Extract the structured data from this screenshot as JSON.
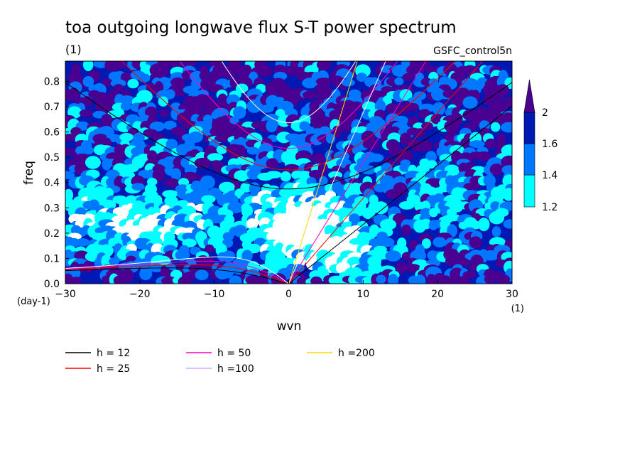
{
  "chart_data": {
    "type": "heatmap",
    "title": "toa outgoing longwave flux S-T power spectrum",
    "units_label": "(1)",
    "subtitle_right": "GSFC_control5n",
    "xlabel": "wvn",
    "ylabel": "freq",
    "x_unit_label": "(1)",
    "y_unit_label": "(day-1)",
    "xlim": [
      -30,
      30
    ],
    "ylim": [
      0,
      0.88
    ],
    "x_ticks": [
      -30,
      -20,
      -10,
      0,
      10,
      20,
      30
    ],
    "y_ticks": [
      0.0,
      0.1,
      0.2,
      0.3,
      0.4,
      0.5,
      0.6,
      0.7,
      0.8
    ],
    "x_tick_labels": [
      "−30",
      "−20",
      "−10",
      "0",
      "10",
      "20",
      "30"
    ],
    "y_tick_labels": [
      "0.0",
      "0.1",
      "0.2",
      "0.3",
      "0.4",
      "0.5",
      "0.6",
      "0.7",
      "0.8"
    ],
    "colorbar": {
      "levels": [
        1.2,
        1.4,
        1.6,
        2
      ],
      "level_labels": [
        "1.2",
        "1.4",
        "1.6",
        "2"
      ],
      "colors": [
        "#ffffff",
        "#00ffff",
        "#0077ff",
        "#0019b4",
        "#4a0090"
      ]
    },
    "dispersion_curves": [
      {
        "label": "h = 12",
        "h": 12,
        "color": "#000000"
      },
      {
        "label": "h = 25",
        "h": 25,
        "color": "#ff0000"
      },
      {
        "label": "h = 50",
        "h": 50,
        "color": "#ff00c8"
      },
      {
        "label": "h =100",
        "h": 100,
        "color": "#dda0ff"
      },
      {
        "label": "h =200",
        "h": 200,
        "color": "#ffd700"
      }
    ],
    "kelvin_line_colors": [
      "#000000",
      "#ff0000",
      "#ff00c8",
      "#ffffff",
      "#ffd700"
    ],
    "gravity_curve_colors": [
      "#000000",
      "#ff0000",
      "#ff00c8",
      "#ffffff"
    ]
  }
}
